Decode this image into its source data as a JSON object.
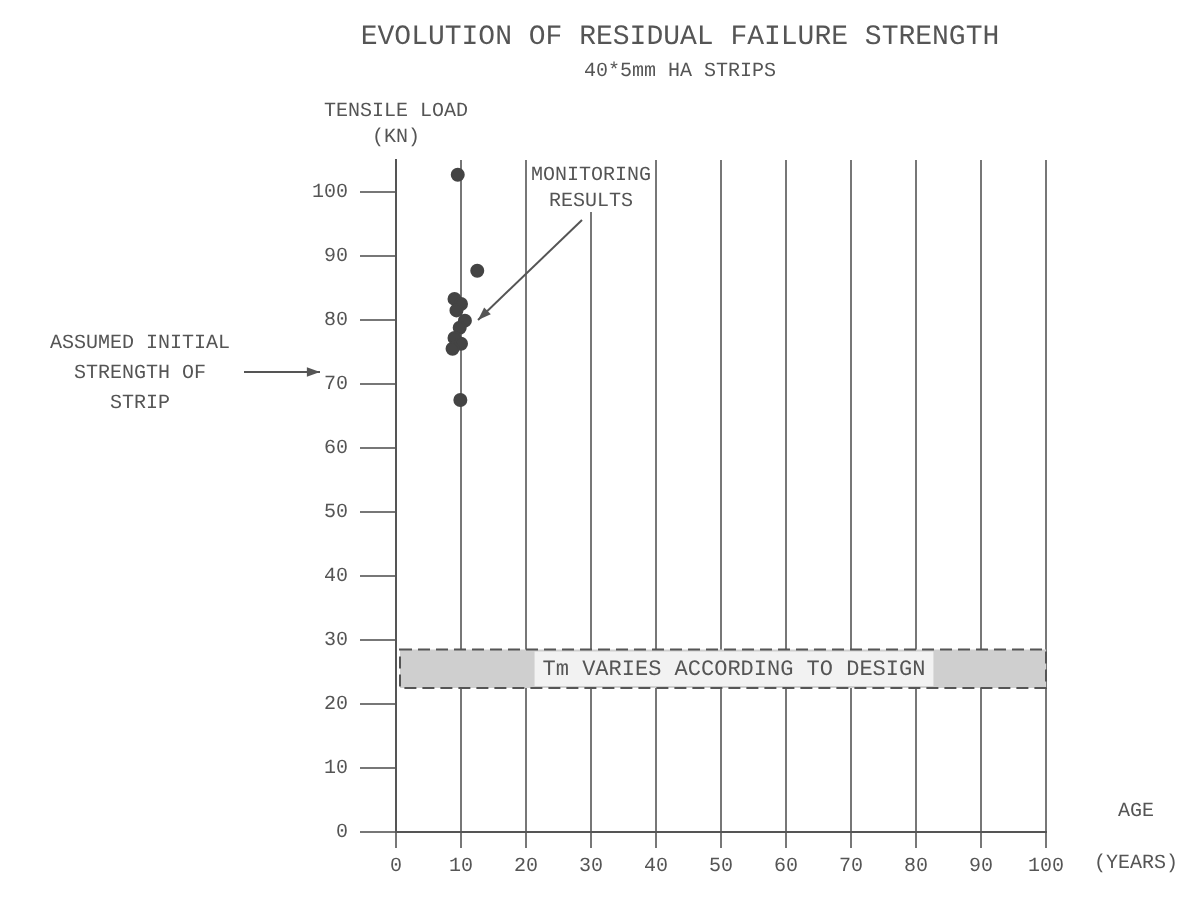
{
  "chart_data": {
    "type": "scatter",
    "title": "EVOLUTION OF RESIDUAL FAILURE STRENGTH",
    "subtitle": "40*5mm HA STRIPS",
    "xlabel": "AGE (YEARS)",
    "ylabel": "TENSILE LOAD (KN)",
    "x": [
      9.5,
      12.5,
      9,
      10,
      9.3,
      10.6,
      9.8,
      9,
      10,
      8.7,
      9.9
    ],
    "values": [
      102.7,
      87.7,
      83.3,
      82.5,
      81.5,
      79.9,
      78.8,
      77.2,
      76.3,
      75.5,
      67.5
    ],
    "color": "#444444",
    "marker": "circle",
    "xlim": [
      0,
      100
    ],
    "ylim": [
      0,
      105
    ],
    "xticks": [
      0,
      10,
      20,
      30,
      40,
      50,
      60,
      70,
      80,
      90,
      100
    ],
    "yticks": [
      0,
      10,
      20,
      30,
      40,
      50,
      60,
      70,
      80,
      90,
      100
    ],
    "grid": "x",
    "bands": [
      {
        "axis": "y",
        "from": 22.5,
        "to": 28.5,
        "label": "Tm VARIES ACCORDING TO DESIGN",
        "color": "#cfcfcf"
      }
    ],
    "annotations": [
      {
        "text": "MONITORING RESULTS",
        "x": 10,
        "y": 80
      },
      "ASSUMED INITIAL STRENGTH OF STRIP"
    ]
  }
}
